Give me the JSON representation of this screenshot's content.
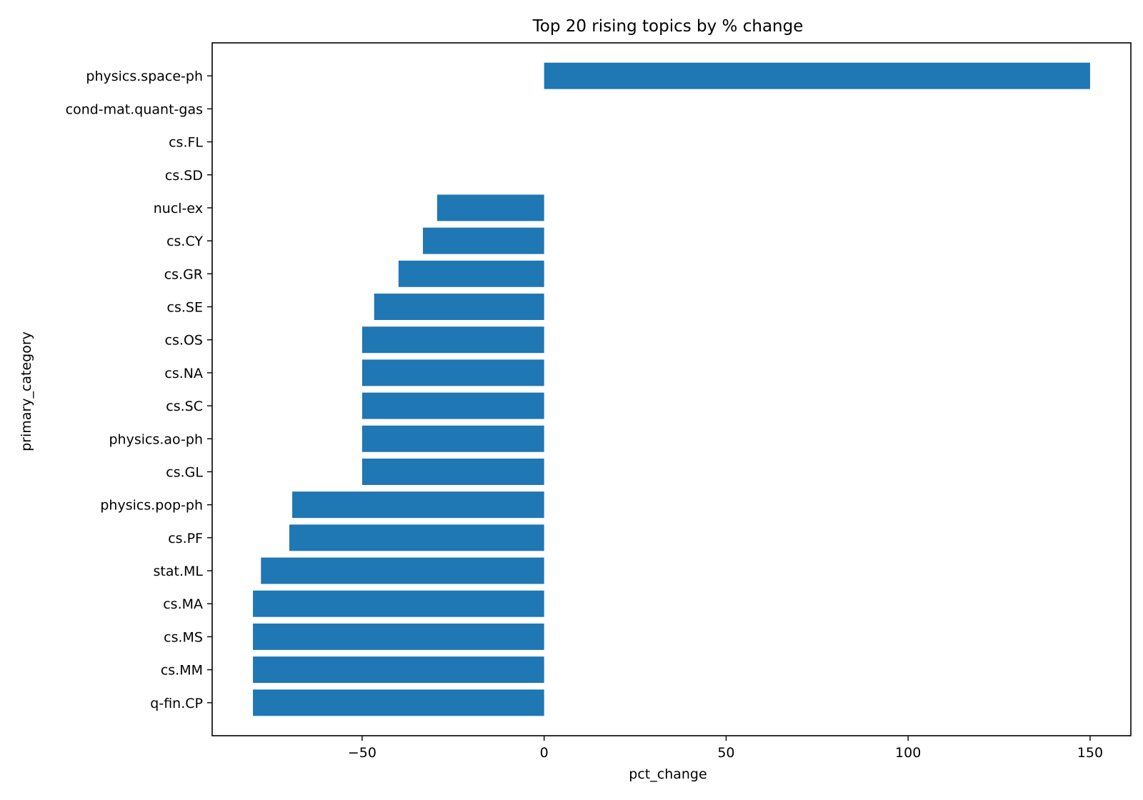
{
  "chart_data": {
    "type": "bar",
    "orientation": "horizontal",
    "title": "Top 20 rising topics by % change",
    "xlabel": "pct_change",
    "ylabel": "primary_category",
    "xlim": [
      -91.2,
      161.2
    ],
    "xticks": [
      -50,
      0,
      50,
      100,
      150
    ],
    "xtick_labels": [
      "−50",
      "0",
      "50",
      "100",
      "150"
    ],
    "grid": false,
    "bar_color": "#1f77b4",
    "categories": [
      "physics.space-ph",
      "cond-mat.quant-gas",
      "cs.FL",
      "cs.SD",
      "nucl-ex",
      "cs.CY",
      "cs.GR",
      "cs.SE",
      "cs.OS",
      "cs.NA",
      "cs.SC",
      "physics.ao-ph",
      "cs.GL",
      "physics.pop-ph",
      "cs.PF",
      "stat.ML",
      "cs.MA",
      "cs.MS",
      "cs.MM",
      "q-fin.CP"
    ],
    "values": [
      150,
      0,
      0,
      0,
      -29.4,
      -33.3,
      -40,
      -46.7,
      -50,
      -50,
      -50,
      -50,
      -50,
      -69.2,
      -70,
      -77.8,
      -80,
      -80,
      -80,
      -80
    ]
  }
}
